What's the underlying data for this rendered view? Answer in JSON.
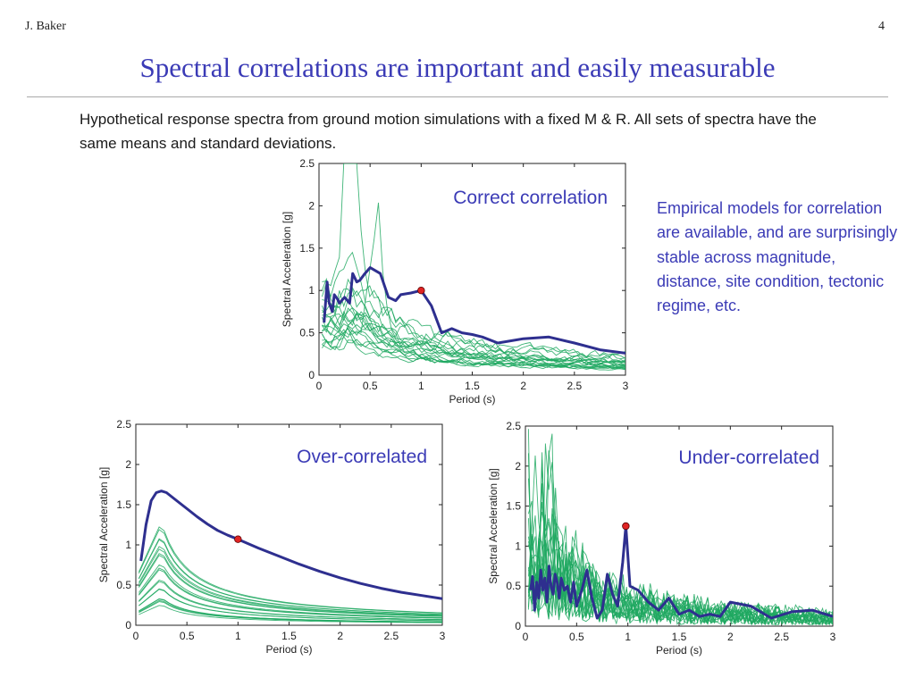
{
  "header": {
    "author": "J. Baker",
    "page_number": "4",
    "title": "Spectral correlations are important and easily measurable"
  },
  "intro_text": "Hypothetical response spectra from ground motion simulations with a fixed M & R. All sets of spectra have the same means and standard deviations.",
  "side_note": "Empirical models for correlation are available, and are surprisingly stable across magnitude, distance, site condition, tectonic regime, etc.",
  "colors": {
    "accent": "#3b3bb6",
    "simulations": "#1fa860",
    "highlight_series": "#2e2f8f",
    "marker_fill": "#e02424"
  },
  "chart_data": [
    {
      "id": "correct",
      "type": "line",
      "title": "Correct correlation",
      "xlabel": "Period (s)",
      "ylabel": "Spectral Acceleration [g]",
      "xlim": [
        0,
        3
      ],
      "ylim": [
        0,
        2.5
      ],
      "xticks": [
        "0",
        "0.5",
        "1",
        "1.5",
        "2",
        "2.5",
        "3"
      ],
      "yticks": [
        "0",
        "0.5",
        "1",
        "1.5",
        "2",
        "2.5"
      ],
      "simulation_count": 20,
      "highlight": {
        "x": [
          0.05,
          0.08,
          0.1,
          0.13,
          0.15,
          0.18,
          0.2,
          0.25,
          0.3,
          0.33,
          0.37,
          0.4,
          0.45,
          0.5,
          0.6,
          0.68,
          0.75,
          0.8,
          0.9,
          1.0,
          1.1,
          1.2,
          1.3,
          1.4,
          1.5,
          1.6,
          1.75,
          2.0,
          2.25,
          2.5,
          2.75,
          3.0
        ],
        "y": [
          0.62,
          1.1,
          0.85,
          0.75,
          0.95,
          0.9,
          0.85,
          0.92,
          0.85,
          1.2,
          1.1,
          1.12,
          1.2,
          1.27,
          1.2,
          0.92,
          0.88,
          0.95,
          0.97,
          1.0,
          0.82,
          0.5,
          0.55,
          0.5,
          0.48,
          0.45,
          0.38,
          0.43,
          0.45,
          0.38,
          0.3,
          0.26
        ]
      },
      "marker": {
        "x": 1.0,
        "y": 1.0
      }
    },
    {
      "id": "over",
      "type": "line",
      "title": "Over-correlated",
      "xlabel": "Period (s)",
      "ylabel": "Spectral Acceleration [g]",
      "xlim": [
        0,
        3
      ],
      "ylim": [
        0,
        2.5
      ],
      "xticks": [
        "0",
        "0.5",
        "1",
        "1.5",
        "2",
        "2.5",
        "3"
      ],
      "yticks": [
        "0",
        "0.5",
        "1",
        "1.5",
        "2",
        "2.5"
      ],
      "simulation_count": 20,
      "highlight": {
        "x": [
          0.05,
          0.1,
          0.15,
          0.2,
          0.25,
          0.3,
          0.4,
          0.5,
          0.6,
          0.7,
          0.8,
          0.9,
          1.0,
          1.2,
          1.4,
          1.6,
          1.8,
          2.0,
          2.2,
          2.4,
          2.6,
          2.8,
          3.0
        ],
        "y": [
          0.8,
          1.25,
          1.55,
          1.65,
          1.67,
          1.65,
          1.55,
          1.45,
          1.35,
          1.26,
          1.18,
          1.12,
          1.07,
          0.96,
          0.86,
          0.76,
          0.67,
          0.59,
          0.52,
          0.46,
          0.41,
          0.37,
          0.33
        ]
      },
      "marker": {
        "x": 1.0,
        "y": 1.07
      }
    },
    {
      "id": "under",
      "type": "line",
      "title": "Under-correlated",
      "xlabel": "Period (s)",
      "ylabel": "Spectral Acceleration [g]",
      "xlim": [
        0,
        3
      ],
      "ylim": [
        0,
        2.5
      ],
      "xticks": [
        "0",
        "0.5",
        "1",
        "1.5",
        "2",
        "2.5",
        "3"
      ],
      "yticks": [
        "0",
        "0.5",
        "1",
        "1.5",
        "2",
        "2.5"
      ],
      "simulation_count": 20,
      "highlight": {
        "x": [
          0.05,
          0.07,
          0.09,
          0.11,
          0.13,
          0.15,
          0.17,
          0.19,
          0.21,
          0.23,
          0.25,
          0.27,
          0.29,
          0.31,
          0.33,
          0.35,
          0.38,
          0.41,
          0.44,
          0.47,
          0.5,
          0.55,
          0.6,
          0.65,
          0.7,
          0.75,
          0.8,
          0.85,
          0.9,
          0.95,
          0.98,
          1.02,
          1.1,
          1.2,
          1.3,
          1.4,
          1.5,
          1.6,
          1.7,
          1.8,
          1.9,
          2.0,
          2.2,
          2.4,
          2.6,
          2.8,
          3.0
        ],
        "y": [
          0.45,
          0.62,
          0.2,
          0.55,
          0.35,
          0.7,
          0.45,
          0.6,
          0.3,
          0.75,
          0.5,
          0.4,
          0.65,
          0.55,
          0.35,
          0.6,
          0.45,
          0.5,
          0.3,
          0.55,
          0.25,
          0.45,
          0.7,
          0.35,
          0.1,
          0.2,
          0.65,
          0.4,
          0.25,
          0.8,
          1.25,
          0.5,
          0.45,
          0.3,
          0.2,
          0.35,
          0.15,
          0.2,
          0.12,
          0.15,
          0.12,
          0.3,
          0.25,
          0.1,
          0.18,
          0.2,
          0.12
        ]
      },
      "marker": {
        "x": 0.98,
        "y": 1.25
      }
    }
  ]
}
